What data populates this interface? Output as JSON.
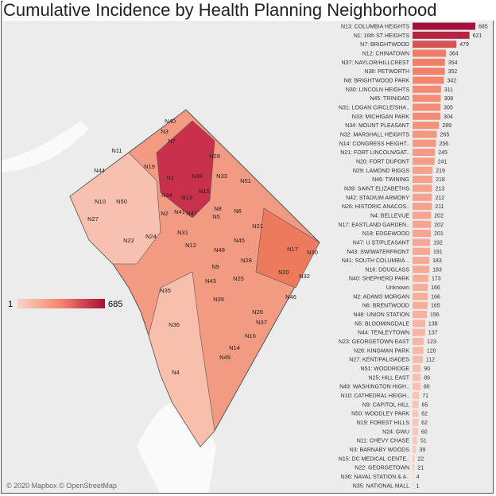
{
  "title": "Cumulative Incidence by Health Planning Neighborhood",
  "credit": "© 2020 Mapbox © OpenStreetMap",
  "legend": {
    "min": "1",
    "max": "685"
  },
  "colors": {
    "low": "#fbd3c7",
    "mid": "#f4846a",
    "high": "#a50f3b"
  },
  "map_labels": [
    "N40",
    "N3",
    "N7",
    "N11",
    "N19",
    "N29",
    "N44",
    "N1",
    "N38",
    "N33",
    "N51",
    "N10",
    "N50",
    "N34",
    "N13",
    "N15",
    "N27",
    "N2",
    "N41",
    "N47",
    "N8",
    "N5",
    "N6",
    "N22",
    "N24",
    "N31",
    "N12",
    "N21",
    "N45",
    "N48",
    "N17",
    "N30",
    "N28",
    "N20",
    "N32",
    "N9",
    "N43",
    "N25",
    "N35",
    "N46",
    "N39",
    "N26",
    "N37",
    "N36",
    "N16",
    "N14",
    "N49",
    "N4"
  ],
  "chart_data": {
    "type": "bar",
    "title": "Cumulative Incidence by Health Planning Neighborhood",
    "orientation": "horizontal",
    "categories": [
      "N13: COLUMBIA HEIGHTS",
      "N1: 16th ST HEIGHTS",
      "N7: BRIGHTWOOD",
      "N12: CHINATOWN",
      "N37: NAYLOR/HILLCREST",
      "N38: PETWORTH",
      "N8: BRIGHTWOOD PARK",
      "N30: LINCOLN HEIGHTS",
      "N45: TRINIDAD",
      "N31: LOGAN CIRCLE/SHA..",
      "N33: MICHIGAN PARK",
      "N34: MOUNT PLEASANT",
      "N32: MARSHALL HEIGHTS",
      "N14: CONGRESS HEIGHT..",
      "N21: FORT LINCOLN/GAT..",
      "N20: FORT DUPONT",
      "N29: LAMOND RIGGS",
      "N46: TWINING",
      "N39: SAINT ELIZABETHS",
      "N42: STADIUM ARMORY",
      "N26: HISTORIC ANACOS..",
      "N4: BELLEVUE",
      "N17: EASTLAND GARDEN..",
      "N18: EDGEWOOD",
      "N47: U ST/PLEASANT",
      "N43: SW/WATERFRONT",
      "N41: SOUTH COLUMBIA ..",
      "N16: DOUGLASS",
      "N40: SHEPHERD PARK",
      "Unknown",
      "N2: ADAMS MORGAN",
      "N6: BRENTWOOD",
      "N48: UNION STATION",
      "N5: BLOOMINGDALE",
      "N44: TENLEYTOWN",
      "N23: GEORGETOWN EAST",
      "N28: KINGMAN PARK",
      "N27: KENT/PALISADES",
      "N51: WOODRIDGE",
      "N25: HILL EAST",
      "N49: WASHINGTON HIGH..",
      "N10: CATHEDRAL HEIGH..",
      "N9: CAPITOL HILL",
      "N50: WOODLEY PARK",
      "N19: FOREST HILLS",
      "N24: GWU",
      "N11: CHEVY CHASE",
      "N3: BARNABY WOODS",
      "N15: DC MEDICAL CENTE..",
      "N22: GEORGETOWN",
      "N36: NAVAL STATION & A..",
      "N35: NATIONAL MALL"
    ],
    "values": [
      685,
      621,
      479,
      364,
      354,
      352,
      342,
      311,
      308,
      305,
      304,
      289,
      265,
      256,
      245,
      241,
      219,
      218,
      213,
      212,
      211,
      202,
      202,
      201,
      192,
      191,
      183,
      183,
      173,
      166,
      166,
      165,
      156,
      138,
      137,
      123,
      120,
      112,
      90,
      89,
      86,
      71,
      65,
      62,
      62,
      60,
      51,
      39,
      22,
      21,
      4,
      1
    ],
    "xlim": [
      0,
      685
    ]
  }
}
